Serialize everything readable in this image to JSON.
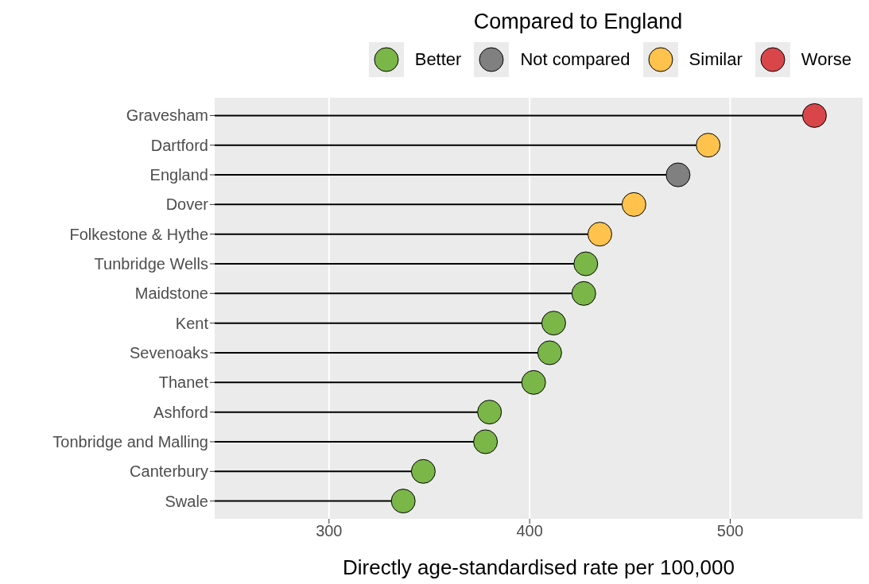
{
  "chart_data": {
    "type": "lollipop",
    "orientation": "horizontal",
    "xlabel": "Directly age-standardised rate per 100,000",
    "legend_title": "Compared to England",
    "legend": "top",
    "grid": "x",
    "marker": "circle",
    "categories": [
      "Gravesham",
      "Dartford",
      "England",
      "Dover",
      "Folkestone & Hythe",
      "Tunbridge Wells",
      "Maidstone",
      "Kent",
      "Sevenoaks",
      "Thanet",
      "Ashford",
      "Tonbridge and Malling",
      "Canterbury",
      "Swale"
    ],
    "series": [
      {
        "name": "Better",
        "color": "#7ab648",
        "values": [
          null,
          null,
          null,
          null,
          null,
          428,
          427,
          412,
          410,
          402,
          380,
          378,
          347,
          337
        ]
      },
      {
        "name": "Not compared",
        "color": "#808080",
        "values": [
          null,
          null,
          474,
          null,
          null,
          null,
          null,
          null,
          null,
          null,
          null,
          null,
          null,
          null
        ]
      },
      {
        "name": "Similar",
        "color": "#ffc34d",
        "values": [
          null,
          489,
          null,
          452,
          435,
          null,
          null,
          null,
          null,
          null,
          null,
          null,
          null,
          null
        ]
      },
      {
        "name": "Worse",
        "color": "#d9464a",
        "values": [
          542,
          null,
          null,
          null,
          null,
          null,
          null,
          null,
          null,
          null,
          null,
          null,
          null,
          null
        ]
      }
    ],
    "xlim": [
      243,
      566
    ],
    "xticks": [
      300,
      400,
      500
    ]
  }
}
